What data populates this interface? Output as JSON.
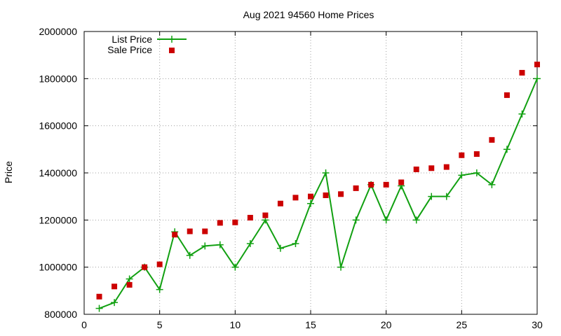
{
  "chart_data": {
    "type": "line",
    "title": "Aug 2021 94560 Home Prices",
    "xlabel": "",
    "ylabel": "Price",
    "xlim": [
      0,
      30
    ],
    "ylim": [
      800000,
      2000000
    ],
    "xticks": [
      0,
      5,
      10,
      15,
      20,
      25,
      30
    ],
    "yticks": [
      800000,
      1000000,
      1200000,
      1400000,
      1600000,
      1800000,
      2000000
    ],
    "grid": true,
    "legend_position": "top-left",
    "series": [
      {
        "name": "List Price",
        "style": "line-points",
        "color": "#11a011",
        "x": [
          1,
          2,
          3,
          4,
          5,
          6,
          7,
          8,
          9,
          10,
          11,
          12,
          13,
          14,
          15,
          16,
          17,
          18,
          19,
          20,
          21,
          22,
          23,
          24,
          25,
          26,
          27,
          28,
          29,
          30
        ],
        "values": [
          825000,
          850000,
          950000,
          1000000,
          905000,
          1150000,
          1050000,
          1090000,
          1095000,
          1000000,
          1100000,
          1200000,
          1080000,
          1100000,
          1270000,
          1400000,
          1000000,
          1200000,
          1350000,
          1200000,
          1345000,
          1200000,
          1300000,
          1300000,
          1390000,
          1400000,
          1350000,
          1500000,
          1650000,
          1800000
        ]
      },
      {
        "name": "Sale Price",
        "style": "points",
        "color": "#cc0000",
        "x": [
          1,
          2,
          3,
          4,
          5,
          6,
          7,
          8,
          9,
          10,
          11,
          12,
          13,
          14,
          15,
          16,
          17,
          18,
          19,
          20,
          21,
          22,
          23,
          24,
          25,
          26,
          27,
          28,
          29,
          30
        ],
        "values": [
          875000,
          918000,
          925000,
          1000000,
          1012000,
          1138000,
          1152000,
          1152000,
          1188000,
          1190000,
          1210000,
          1220000,
          1270000,
          1295000,
          1300000,
          1305000,
          1310000,
          1335000,
          1350000,
          1350000,
          1360000,
          1415000,
          1420000,
          1425000,
          1475000,
          1480000,
          1540000,
          1730000,
          1825000,
          1860000
        ]
      }
    ]
  }
}
